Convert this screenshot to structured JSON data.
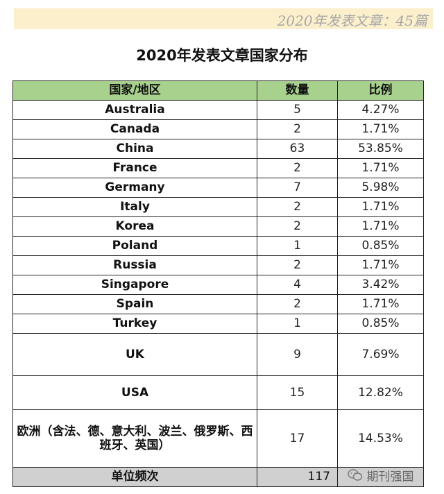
{
  "banner": {
    "text": "2020年发表文章：45篇"
  },
  "title": "2020年发表文章国家分布",
  "table": {
    "headers": [
      "国家/地区",
      "数量",
      "比例"
    ],
    "rows": [
      [
        "Australia",
        "5",
        "4.27%"
      ],
      [
        "Canada",
        "2",
        "1.71%"
      ],
      [
        "China",
        "63",
        "53.85%"
      ],
      [
        "France",
        "2",
        "1.71%"
      ],
      [
        "Germany",
        "7",
        "5.98%"
      ],
      [
        "Italy",
        "2",
        "1.71%"
      ],
      [
        "Korea",
        "2",
        "1.71%"
      ],
      [
        "Poland",
        "1",
        "0.85%"
      ],
      [
        "Russia",
        "2",
        "1.71%"
      ],
      [
        "Singapore",
        "4",
        "3.42%"
      ],
      [
        "Spain",
        "2",
        "1.71%"
      ],
      [
        "Turkey",
        "1",
        "0.85%"
      ],
      [
        "UK",
        "9",
        "7.69%"
      ],
      [
        "USA",
        "15",
        "12.82%"
      ],
      [
        "欧洲（含法、德、意大利、波兰、俄罗斯、西班牙、英国）",
        "17",
        "14.53%"
      ]
    ],
    "total": {
      "label": "单位频次",
      "value": "117"
    }
  },
  "watermark": {
    "text": "期刊强国",
    "icon": "wechat-icon"
  }
}
